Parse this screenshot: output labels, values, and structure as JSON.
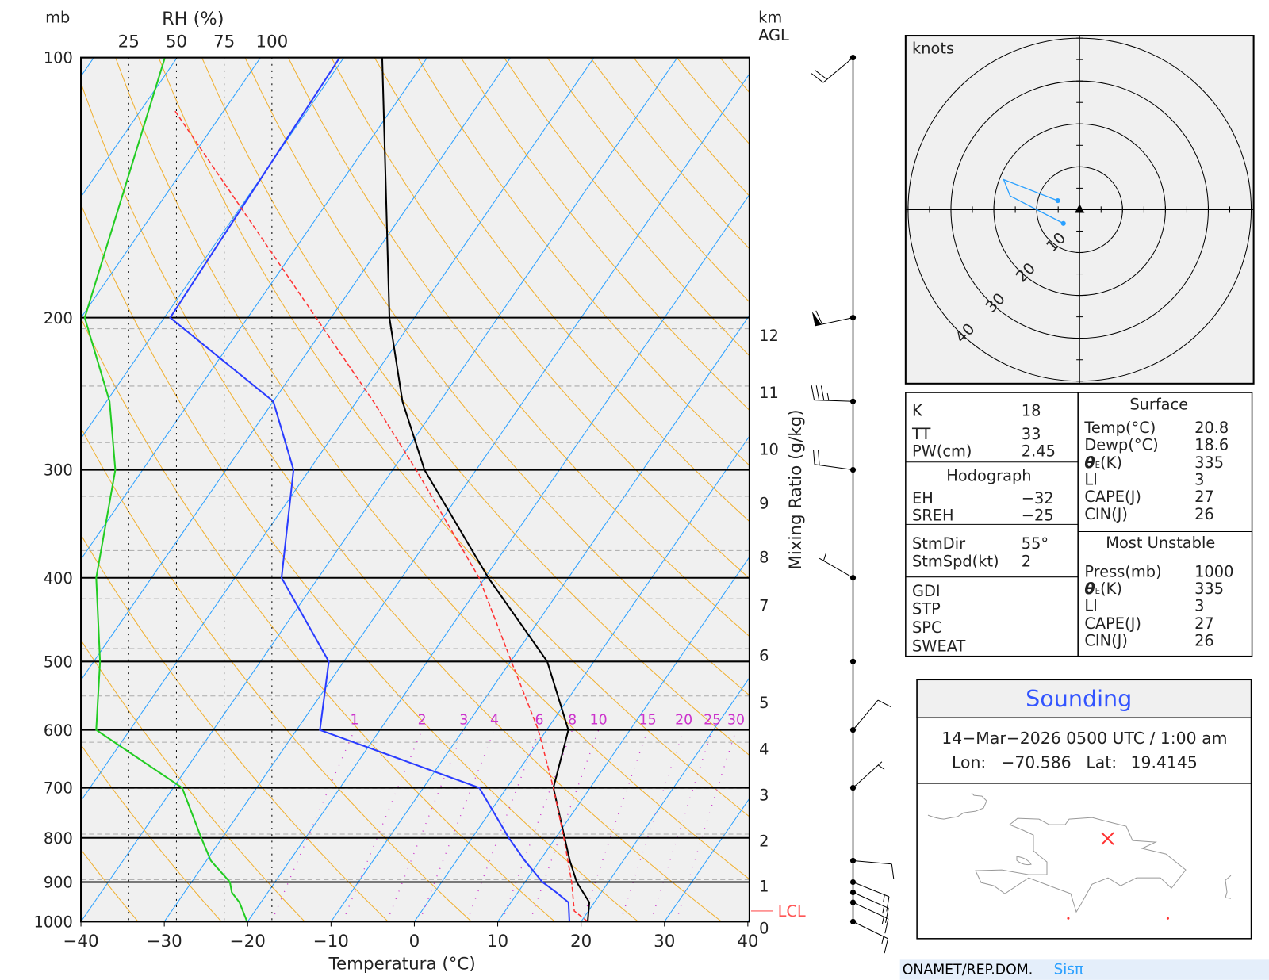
{
  "chart_data": {
    "type": "skew-t",
    "title": "",
    "xlabel": "Temperatura (°C)",
    "ylabel": "mb",
    "rh_label": "RH (%)",
    "right_axis_label": "Mixing Ratio (g/kg)",
    "height_axis_label": [
      "km",
      "AGL"
    ],
    "xlim": [
      -40,
      40
    ],
    "ylim_mb": [
      1000,
      100
    ],
    "grid": true,
    "pressure_ticks": [
      1000,
      900,
      800,
      700,
      600,
      500,
      400,
      300,
      200,
      100
    ],
    "temp_ticks": [
      -40,
      -30,
      -20,
      -10,
      0,
      10,
      20,
      30,
      40
    ],
    "rh_ticks": [
      25,
      50,
      75,
      100
    ],
    "height_ticks": [
      {
        "km": "0",
        "p": 1000
      },
      {
        "km": "1",
        "p": 894
      },
      {
        "km": "2",
        "p": 792
      },
      {
        "km": "3",
        "p": 701
      },
      {
        "km": "4",
        "p": 620
      },
      {
        "km": "5",
        "p": 548
      },
      {
        "km": "6",
        "p": 483
      },
      {
        "km": "7",
        "p": 423
      },
      {
        "km": "8",
        "p": 372
      },
      {
        "km": "9",
        "p": 322
      },
      {
        "km": "10",
        "p": 279
      },
      {
        "km": "11",
        "p": 240
      },
      {
        "km": "12",
        "p": 206
      }
    ],
    "mixing_ratio_ticks": [
      1,
      2,
      3,
      4,
      6,
      8,
      10,
      15,
      20,
      25,
      30
    ],
    "lcl": {
      "label": "LCL",
      "p": 972
    },
    "series": [
      {
        "name": "Temperature",
        "color": "#000000",
        "points": [
          [
            1000,
            20.8
          ],
          [
            950,
            19.4
          ],
          [
            900,
            16.2
          ],
          [
            850,
            13.6
          ],
          [
            800,
            11.1
          ],
          [
            700,
            5.6
          ],
          [
            600,
            2.6
          ],
          [
            500,
            -5.6
          ],
          [
            400,
            -19.6
          ],
          [
            300,
            -36.2
          ],
          [
            250,
            -44.5
          ],
          [
            200,
            -53.0
          ],
          [
            100,
            -75.4
          ]
        ]
      },
      {
        "name": "Dewpoint",
        "color": "#2a3cff",
        "points": [
          [
            1000,
            18.6
          ],
          [
            950,
            16.9
          ],
          [
            925,
            14.6
          ],
          [
            900,
            12.1
          ],
          [
            850,
            8.2
          ],
          [
            800,
            4.4
          ],
          [
            700,
            -3.3
          ],
          [
            600,
            -27.2
          ],
          [
            500,
            -31.8
          ],
          [
            400,
            -44.4
          ],
          [
            300,
            -51.9
          ],
          [
            250,
            -60.0
          ],
          [
            200,
            -79.3
          ],
          [
            100,
            -80.5
          ]
        ]
      },
      {
        "name": "Parcel",
        "color": "#ff3333",
        "points": [
          [
            1000,
            20.8
          ],
          [
            972,
            18.3
          ],
          [
            900,
            15.6
          ],
          [
            800,
            11.0
          ],
          [
            700,
            5.6
          ],
          [
            600,
            -1.0
          ],
          [
            500,
            -9.9
          ],
          [
            400,
            -20.7
          ],
          [
            300,
            -37.2
          ],
          [
            250,
            -48.0
          ],
          [
            200,
            -61.8
          ],
          [
            115,
            -96.0
          ]
        ]
      },
      {
        "name": "RH",
        "color": "#22cc22",
        "points": [
          [
            1000,
            87
          ],
          [
            950,
            83
          ],
          [
            925,
            79
          ],
          [
            900,
            78
          ],
          [
            850,
            68
          ],
          [
            800,
            63
          ],
          [
            700,
            53
          ],
          [
            600,
            8
          ],
          [
            500,
            10
          ],
          [
            400,
            8
          ],
          [
            300,
            18
          ],
          [
            250,
            15
          ],
          [
            200,
            2
          ],
          [
            100,
            44
          ]
        ]
      }
    ],
    "winds": [
      {
        "p": 100,
        "dir": 230,
        "speed": 20
      },
      {
        "p": 200,
        "dir": 258,
        "speed": 60
      },
      {
        "p": 250,
        "dir": 272,
        "speed": 35
      },
      {
        "p": 300,
        "dir": 278,
        "speed": 20
      },
      {
        "p": 400,
        "dir": 300,
        "speed": 5
      },
      {
        "p": 500,
        "dir": 0,
        "speed": 0
      },
      {
        "p": 600,
        "dir": 40,
        "speed": 10
      },
      {
        "p": 700,
        "dir": 48,
        "speed": 5
      },
      {
        "p": 850,
        "dir": 95,
        "speed": 10
      },
      {
        "p": 900,
        "dir": 112,
        "speed": 15
      },
      {
        "p": 925,
        "dir": 114,
        "speed": 15
      },
      {
        "p": 950,
        "dir": 115,
        "speed": 15
      },
      {
        "p": 1000,
        "dir": 116,
        "speed": 15
      }
    ]
  },
  "hodograph": {
    "unit_label": "knots",
    "ring_labels": [
      "10",
      "20",
      "30",
      "40"
    ],
    "ring_values": [
      10,
      20,
      30,
      40
    ],
    "points_uv_kt": [
      [
        -5.1,
        2.1
      ],
      [
        -17.7,
        7.0
      ],
      [
        -16.2,
        3.2
      ],
      [
        -3.8,
        -3.2
      ]
    ]
  },
  "indices": {
    "left": {
      "k": {
        "label": "K",
        "value": "18"
      },
      "tt": {
        "label": "TT",
        "value": "33"
      },
      "pw": {
        "label": "PW(cm)",
        "value": "2.45"
      },
      "hodograph_header": "Hodograph",
      "eh": {
        "label": "EH",
        "value": "−32"
      },
      "sreh": {
        "label": "SREH",
        "value": "−25"
      },
      "stmdir": {
        "label": "StmDir",
        "value": "55°"
      },
      "stmspd": {
        "label": "StmSpd(kt)",
        "value": "2"
      },
      "gdi": {
        "label": "GDI"
      },
      "stp": {
        "label": "STP"
      },
      "spc": {
        "label": "SPC"
      },
      "sweat": {
        "label": "SWEAT"
      }
    },
    "surface": {
      "header": "Surface",
      "temp": {
        "label": "Temp(°C)",
        "value": "20.8"
      },
      "dewp": {
        "label": "Dewp(°C)",
        "value": "18.6"
      },
      "thetae": {
        "label": "θ",
        "sub": "E",
        "unit": "(K)",
        "value": "335"
      },
      "li": {
        "label": "LI",
        "value": "3"
      },
      "cape": {
        "label": "CAPE(J)",
        "value": "27"
      },
      "cin": {
        "label": "CIN(J)",
        "value": "26"
      }
    },
    "most_unstable": {
      "header": "Most Unstable",
      "press": {
        "label": "Press(mb)",
        "value": "1000"
      },
      "thetae": {
        "label": "θ",
        "sub": "E",
        "unit": "(K)",
        "value": "335"
      },
      "li": {
        "label": "LI",
        "value": "3"
      },
      "cape": {
        "label": "CAPE(J)",
        "value": "27"
      },
      "cin": {
        "label": "CIN(J)",
        "value": "26"
      }
    }
  },
  "sounding": {
    "title": "Sounding",
    "datetime": "14−Mar−2026 0500  UTC / 1:00  am",
    "lon_label": "Lon:",
    "lon": "−70.586",
    "lat_label": "Lat:",
    "lat": "19.4145",
    "marker_color": "#ff3333"
  },
  "footer": {
    "org": "ONAMET/REP.DOM.",
    "brand": "SisΠ",
    "brand_display": "Sisπ"
  },
  "colors": {
    "isotherm": "#2aa0ff",
    "dry_adiabat": "#f0b030",
    "mixing_ratio": "#cc33cc",
    "plot_bg": "#f0f0f0",
    "title_blue": "#3355ff",
    "footer_bg": "#e4eefa"
  }
}
